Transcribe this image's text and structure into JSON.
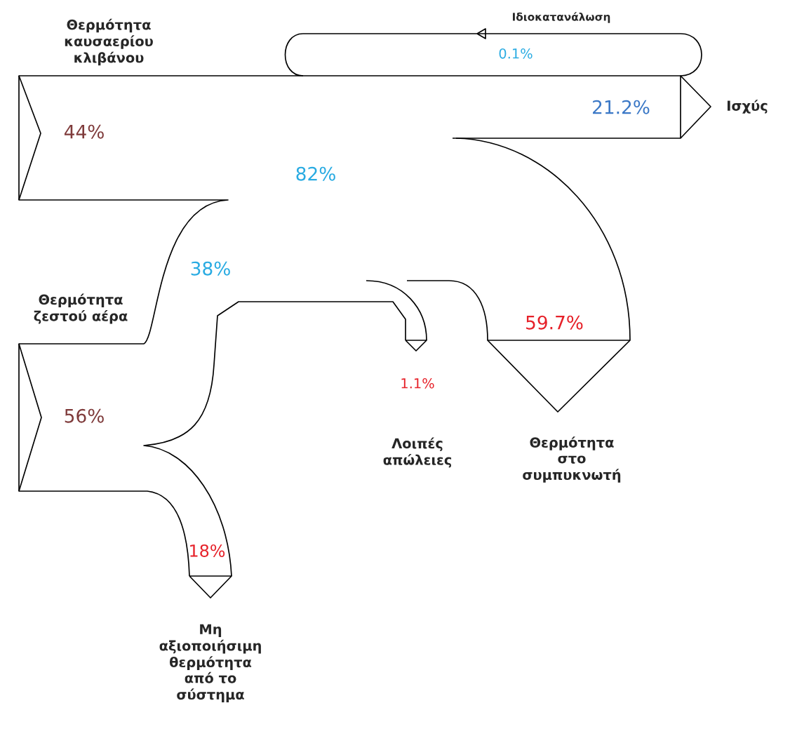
{
  "chart_data": {
    "type": "other",
    "categories": [
      "Θερμότητα\nκαυσαερίου\nκλιβάνου",
      "Θερμότητα\nζεστού αέρα",
      "Ισχύς",
      "Ιδιοκατανάλωση",
      "Θερμότητα\nστο\nσυμπυκνωτή",
      "Λοιπές\nαπώλειες",
      "Μη\nαξιοποιήσιμη\nθερμότητα\nαπό το\nσύστημα"
    ],
    "values": [
      44,
      56,
      21.2,
      0.1,
      59.7,
      1.1,
      18
    ],
    "value_labels": [
      "44%",
      "56%",
      "21.2%",
      "0.1%",
      "59.7%",
      "1.1%",
      "18%"
    ],
    "colors": [
      "#7f3b3b",
      "#7f3b3b",
      "#3b78c6",
      "#29abe2",
      "#e62129",
      "#e62129",
      "#e62129"
    ],
    "annotations": [
      "82%",
      "38%"
    ]
  }
}
